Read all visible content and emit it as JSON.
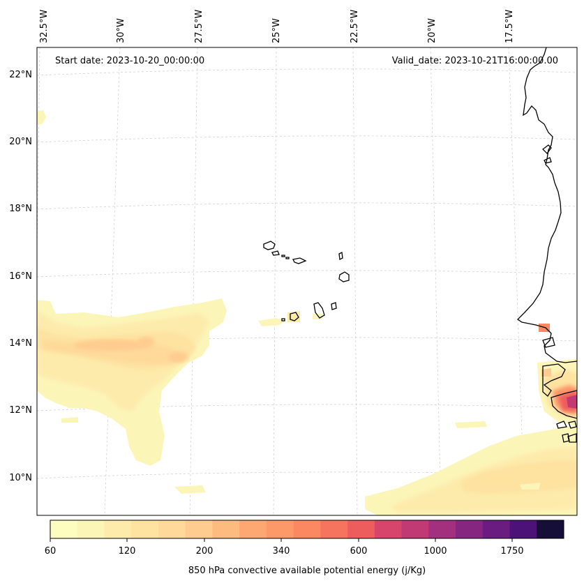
{
  "map": {
    "start_date": "Start date: 2023-10-20_00:00:00",
    "valid_date": "Valid_date: 2023-10-21T16:00:00.00",
    "lon_labels": [
      "32.5°W",
      "30°W",
      "27.5°W",
      "25°W",
      "22.5°W",
      "20°W",
      "17.5°W"
    ],
    "lat_labels": [
      "22°N",
      "20°N",
      "18°N",
      "16°N",
      "14°N",
      "12°N",
      "10°N"
    ],
    "grid": true,
    "coastline_color": "#000000"
  },
  "colorbar": {
    "label": "850 hPa convective available potential energy (j/Kg)",
    "tick_labels": [
      "60",
      "120",
      "200",
      "340",
      "600",
      "1000",
      "1750"
    ],
    "colors": [
      "#fcfdbf",
      "#fcf5b8",
      "#fdebab",
      "#fde2a0",
      "#fed99a",
      "#fecc8f",
      "#febb80",
      "#fda872",
      "#fd9869",
      "#fb8861",
      "#f6735d",
      "#ee5d5d",
      "#d8456c",
      "#c13a73",
      "#a3307e",
      "#862681",
      "#6a1c80",
      "#4d1277",
      "#150e37"
    ],
    "palette_name": "magma-reversed"
  }
}
